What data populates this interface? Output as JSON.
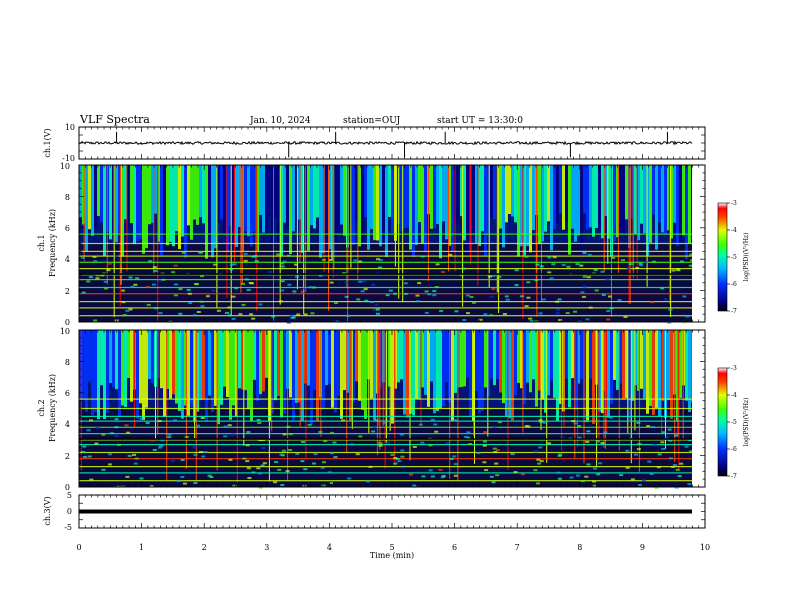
{
  "header": {
    "title": "VLF Spectra",
    "date": "Jan. 10, 2024",
    "station": "station=OUJ",
    "start": "start UT =  13:30:0"
  },
  "chart_data": [
    {
      "type": "line",
      "panel": "ch1-waveform",
      "ylabel": "ch.1(V)",
      "ylim": [
        -10,
        10
      ],
      "yticks": [
        "10",
        "-10"
      ],
      "baseline": 0,
      "spikes_min": [
        0.6,
        3.35,
        4.1,
        5.2,
        5.85,
        7.85,
        9.4
      ]
    },
    {
      "type": "heatmap",
      "panel": "ch1-spectrogram",
      "ylabel": "ch.1",
      "ylabel2": "Frequency (kHz)",
      "ylim": [
        0,
        10
      ],
      "yticks": [
        "0",
        "2",
        "4",
        "6",
        "8",
        "10"
      ],
      "colorbar": {
        "label": "log(PSD)(V²/Hz)",
        "range": [
          -7,
          -3
        ],
        "ticks": [
          "-3",
          "-4",
          "-5",
          "-6",
          "-7"
        ]
      }
    },
    {
      "type": "heatmap",
      "panel": "ch2-spectrogram",
      "ylabel": "ch.2",
      "ylabel2": "Frequency (kHz)",
      "ylim": [
        0,
        10
      ],
      "yticks": [
        "0",
        "2",
        "4",
        "6",
        "8",
        "10"
      ],
      "colorbar": {
        "label": "log(PSD)(V²/Hz)",
        "range": [
          -7,
          -3
        ],
        "ticks": [
          "-3",
          "-4",
          "-5",
          "-6",
          "-7"
        ]
      }
    },
    {
      "type": "line",
      "panel": "ch3-waveform",
      "ylabel": "ch.3(V)",
      "ylim": [
        -5,
        5
      ],
      "yticks": [
        "5",
        "0",
        "-5"
      ],
      "baseline": 0
    }
  ],
  "xaxis": {
    "label": "Time (min)",
    "range": [
      0,
      10
    ],
    "ticks": [
      "0",
      "1",
      "2",
      "3",
      "4",
      "5",
      "6",
      "7",
      "8",
      "9",
      "10"
    ]
  }
}
